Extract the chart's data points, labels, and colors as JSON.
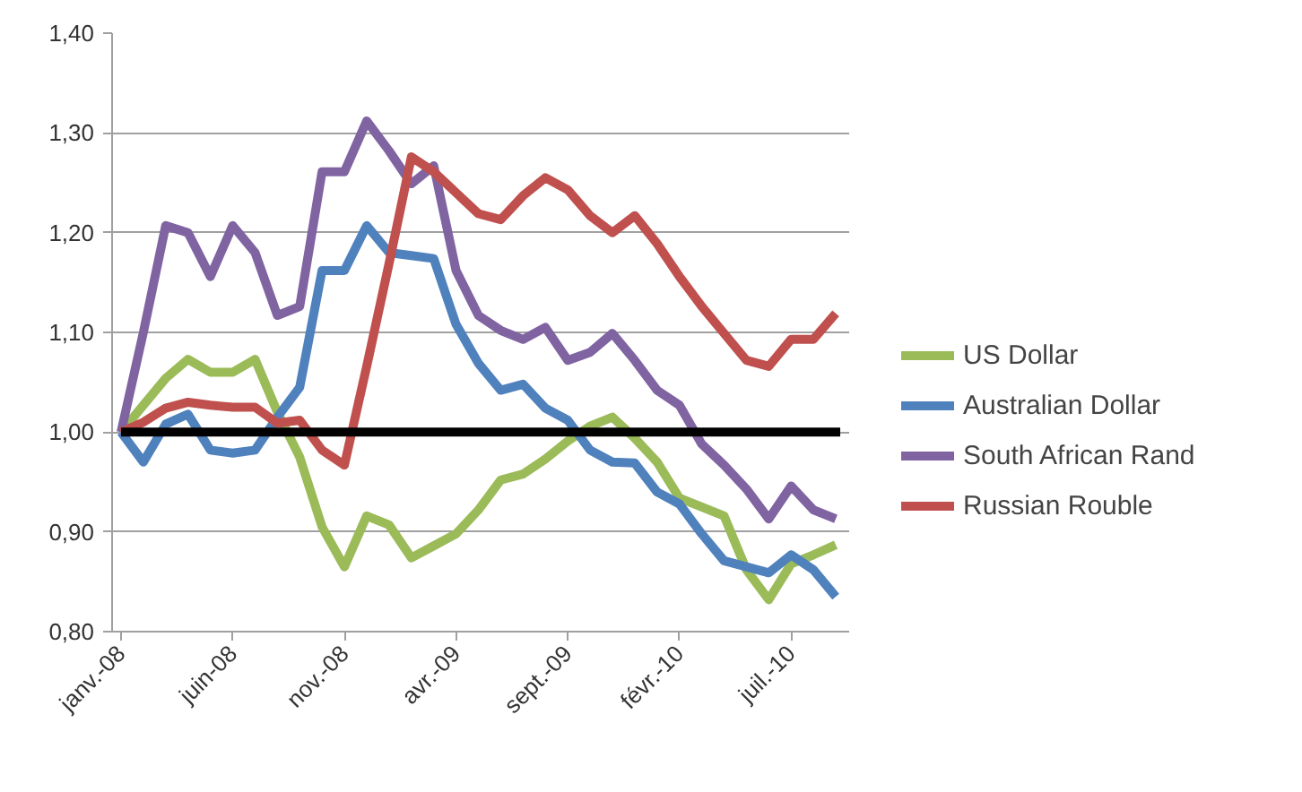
{
  "chart_data": {
    "type": "line",
    "categories": [
      "janv.-08",
      null,
      null,
      null,
      null,
      "juin-08",
      null,
      null,
      null,
      null,
      "nov.-08",
      null,
      null,
      null,
      null,
      "avr.-09",
      null,
      null,
      null,
      null,
      "sept.-09",
      null,
      null,
      null,
      null,
      "févr.-10",
      null,
      null,
      null,
      null,
      "juil.-10",
      null,
      null
    ],
    "series": [
      {
        "name": "US Dollar",
        "color": "#9bbb59",
        "values": [
          1.0,
          1.027,
          1.054,
          1.073,
          1.06,
          1.06,
          1.073,
          1.02,
          0.975,
          0.905,
          0.865,
          0.916,
          0.907,
          0.874,
          0.886,
          0.898,
          0.922,
          0.952,
          0.958,
          0.973,
          0.991,
          1.006,
          1.015,
          0.994,
          0.97,
          0.934,
          0.925,
          0.916,
          0.862,
          0.832,
          0.868,
          0.877,
          0.887
        ]
      },
      {
        "name": "Australian Dollar",
        "color": "#4f81bd",
        "values": [
          1.0,
          0.97,
          1.008,
          1.018,
          0.982,
          0.979,
          0.982,
          1.015,
          1.045,
          1.162,
          1.162,
          1.207,
          1.18,
          1.177,
          1.174,
          1.108,
          1.069,
          1.042,
          1.048,
          1.024,
          1.012,
          0.982,
          0.97,
          0.969,
          0.94,
          0.928,
          0.898,
          0.871,
          0.865,
          0.859,
          0.877,
          0.862,
          0.835
        ]
      },
      {
        "name": "South African Rand",
        "color": "#8064a2",
        "values": [
          1.0,
          1.1,
          1.207,
          1.2,
          1.156,
          1.207,
          1.18,
          1.117,
          1.126,
          1.261,
          1.261,
          1.312,
          1.282,
          1.249,
          1.267,
          1.162,
          1.117,
          1.102,
          1.093,
          1.105,
          1.072,
          1.08,
          1.099,
          1.072,
          1.042,
          1.027,
          0.988,
          0.967,
          0.943,
          0.913,
          0.946,
          0.922,
          0.913
        ]
      },
      {
        "name": "Russian Rouble",
        "color": "#c0504d",
        "values": [
          1.0,
          1.01,
          1.024,
          1.03,
          1.027,
          1.025,
          1.025,
          1.009,
          1.012,
          0.982,
          0.967,
          1.066,
          1.169,
          1.276,
          1.261,
          1.24,
          1.219,
          1.213,
          1.237,
          1.255,
          1.243,
          1.217,
          1.2,
          1.217,
          1.189,
          1.156,
          1.126,
          1.099,
          1.072,
          1.066,
          1.093,
          1.093,
          1.119
        ]
      }
    ],
    "ylim": [
      0.8,
      1.4
    ],
    "yticks": [
      {
        "value": 0.8,
        "label": "0,80"
      },
      {
        "value": 0.9,
        "label": "0,90"
      },
      {
        "value": 1.0,
        "label": "1,00"
      },
      {
        "value": 1.1,
        "label": "1,10"
      },
      {
        "value": 1.2,
        "label": "1,20"
      },
      {
        "value": 1.3,
        "label": "1,30"
      },
      {
        "value": 1.4,
        "label": "1,40"
      }
    ],
    "ref_lines": [
      {
        "axis": "y",
        "value": 1.0,
        "color": "#000000"
      }
    ],
    "grid": "y",
    "legend": "right",
    "marker": "none",
    "line_style": "solid"
  }
}
